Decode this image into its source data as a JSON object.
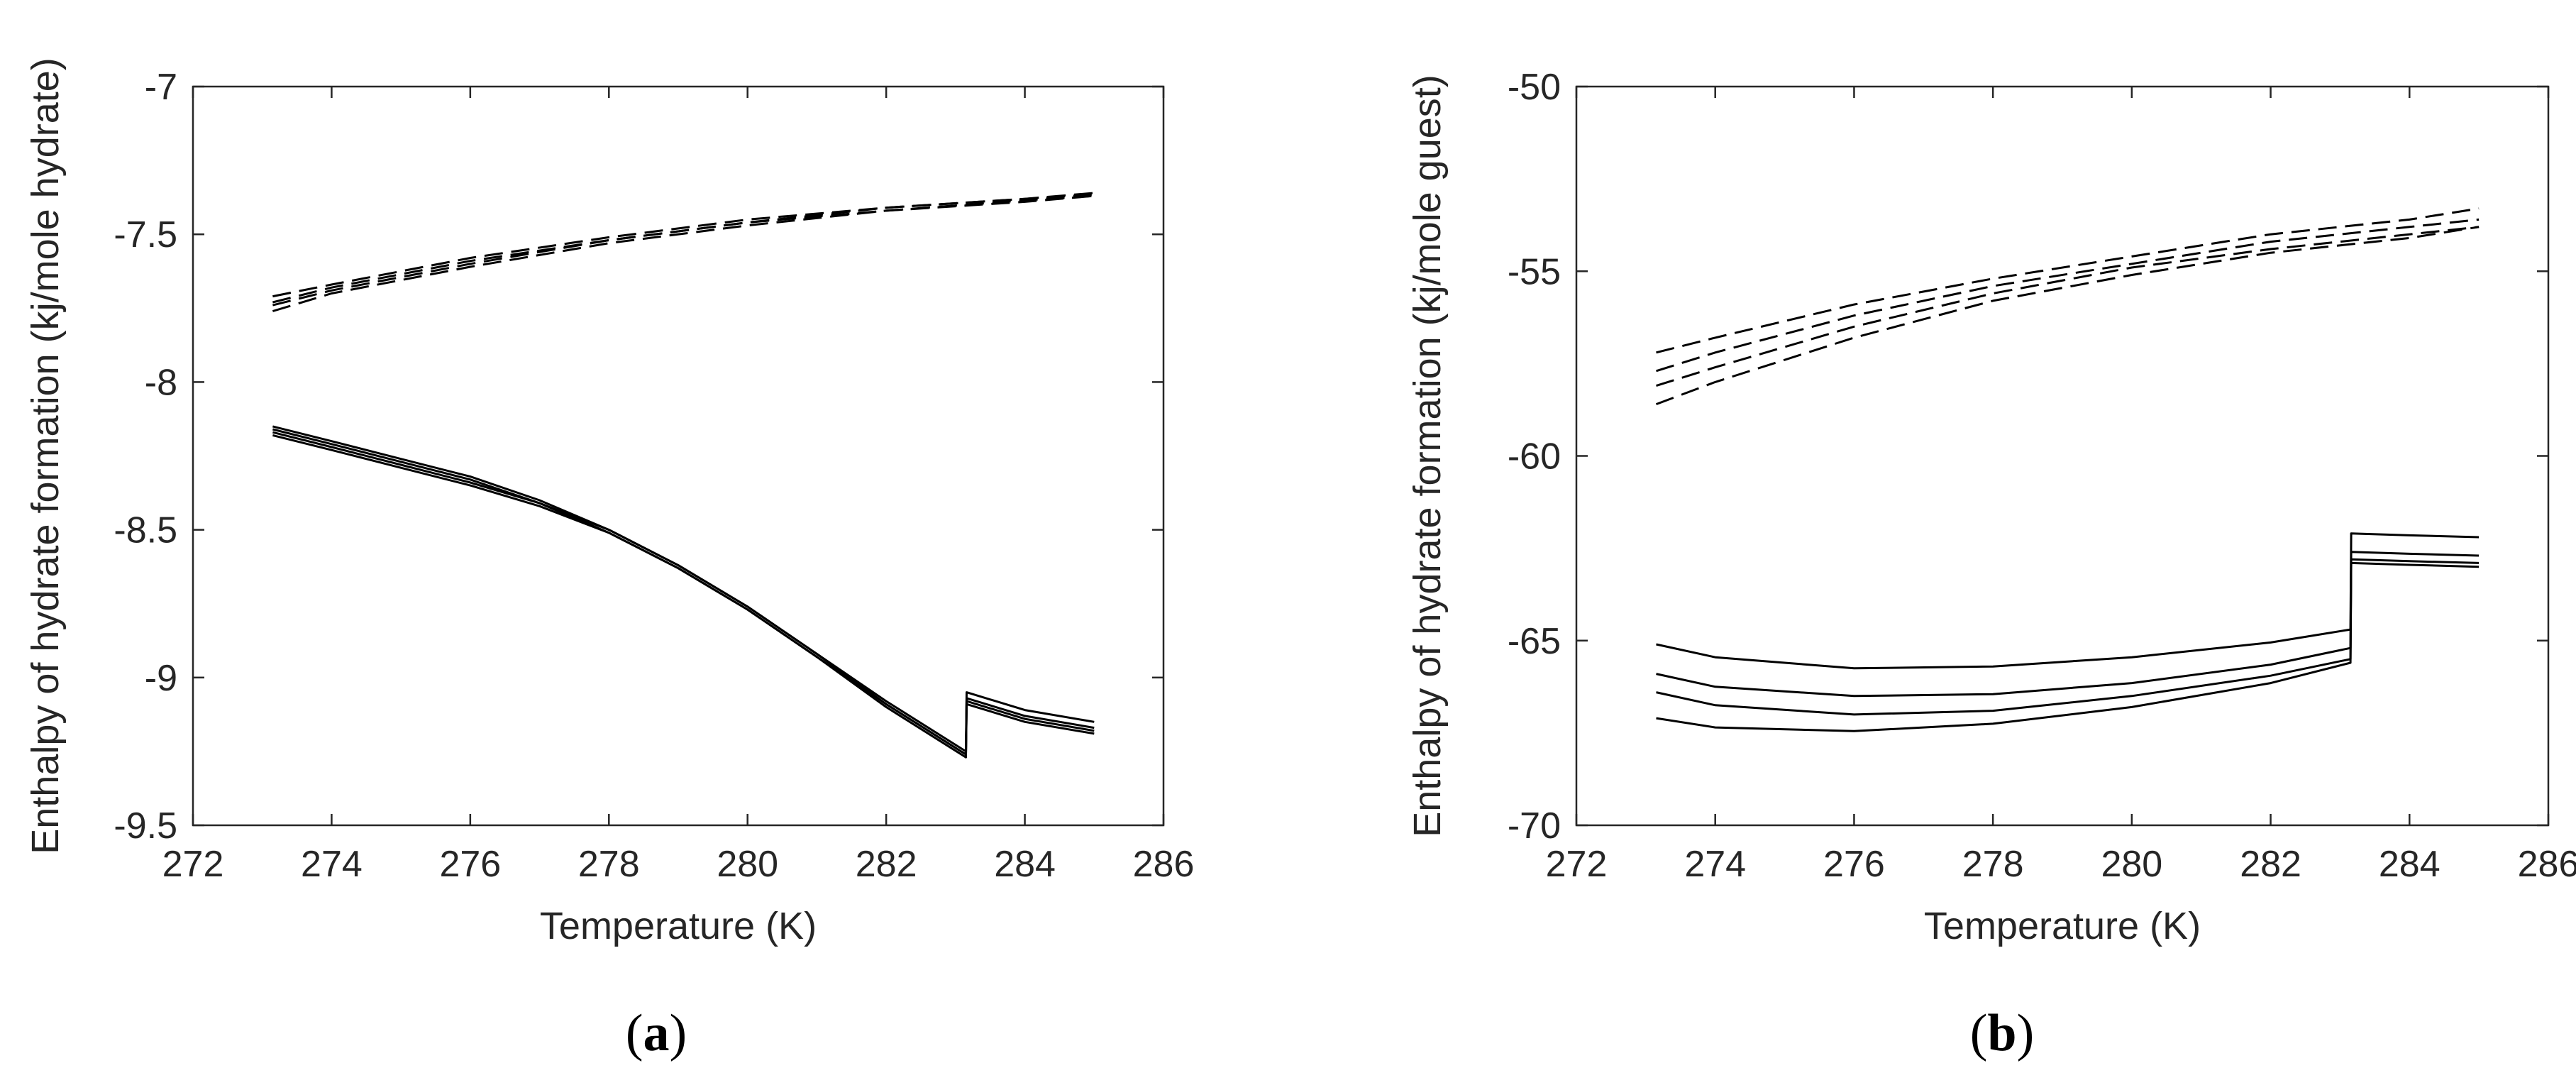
{
  "chart_data": [
    {
      "type": "line",
      "panel_label_open": "(",
      "panel_label_letter": "a",
      "panel_label_close": ")",
      "xlabel": "Temperature (K)",
      "ylabel": "Enthalpy of hydrate formation (kj/mole hydrate)",
      "xlim": [
        272,
        286
      ],
      "ylim": [
        -9.5,
        -7
      ],
      "xticks": [
        272,
        274,
        276,
        278,
        280,
        282,
        284,
        286
      ],
      "yticks": [
        -7,
        -7.5,
        -8,
        -8.5,
        -9,
        -9.5
      ],
      "xtick_labels": [
        "272",
        "274",
        "276",
        "278",
        "280",
        "282",
        "284",
        "286"
      ],
      "ytick_labels": [
        "-7",
        "-7.5",
        "-8",
        "-8.5",
        "-9",
        "-9.5"
      ],
      "series": [
        {
          "name": "dashed 1",
          "style": "dashed",
          "x": [
            273.15,
            274,
            276,
            278,
            280,
            282,
            284,
            285
          ],
          "y": [
            -7.71,
            -7.67,
            -7.58,
            -7.51,
            -7.45,
            -7.41,
            -7.38,
            -7.36
          ]
        },
        {
          "name": "dashed 2",
          "style": "dashed",
          "x": [
            273.15,
            274,
            276,
            278,
            280,
            282,
            284,
            285
          ],
          "y": [
            -7.73,
            -7.68,
            -7.59,
            -7.52,
            -7.46,
            -7.41,
            -7.38,
            -7.365
          ]
        },
        {
          "name": "dashed 3",
          "style": "dashed",
          "x": [
            273.15,
            274,
            276,
            278,
            280,
            282,
            284,
            285
          ],
          "y": [
            -7.74,
            -7.69,
            -7.6,
            -7.52,
            -7.46,
            -7.42,
            -7.385,
            -7.37
          ]
        },
        {
          "name": "dashed 4",
          "style": "dashed",
          "x": [
            273.15,
            274,
            276,
            278,
            280,
            282,
            284,
            285
          ],
          "y": [
            -7.76,
            -7.7,
            -7.61,
            -7.53,
            -7.47,
            -7.42,
            -7.39,
            -7.37
          ]
        },
        {
          "name": "solid 1",
          "style": "solid",
          "x": [
            273.15,
            274,
            275,
            276,
            277,
            278,
            279,
            280,
            281,
            282,
            283.15,
            283.16,
            284,
            285
          ],
          "y": [
            -8.15,
            -8.2,
            -8.26,
            -8.32,
            -8.4,
            -8.5,
            -8.62,
            -8.76,
            -8.92,
            -9.08,
            -9.25,
            -9.05,
            -9.11,
            -9.15
          ]
        },
        {
          "name": "solid 2",
          "style": "solid",
          "x": [
            273.15,
            274,
            275,
            276,
            277,
            278,
            279,
            280,
            281,
            282,
            283.15,
            283.16,
            284,
            285
          ],
          "y": [
            -8.16,
            -8.21,
            -8.27,
            -8.33,
            -8.41,
            -8.5,
            -8.62,
            -8.76,
            -8.92,
            -9.09,
            -9.26,
            -9.07,
            -9.13,
            -9.17
          ]
        },
        {
          "name": "solid 3",
          "style": "solid",
          "x": [
            273.15,
            274,
            275,
            276,
            277,
            278,
            279,
            280,
            281,
            282,
            283.15,
            283.16,
            284,
            285
          ],
          "y": [
            -8.17,
            -8.22,
            -8.28,
            -8.34,
            -8.41,
            -8.51,
            -8.63,
            -8.77,
            -8.93,
            -9.09,
            -9.26,
            -9.08,
            -9.14,
            -9.18
          ]
        },
        {
          "name": "solid 4",
          "style": "solid",
          "x": [
            273.15,
            274,
            275,
            276,
            277,
            278,
            279,
            280,
            281,
            282,
            283.15,
            283.16,
            284,
            285
          ],
          "y": [
            -8.18,
            -8.23,
            -8.29,
            -8.35,
            -8.42,
            -8.51,
            -8.63,
            -8.77,
            -8.93,
            -9.1,
            -9.27,
            -9.09,
            -9.15,
            -9.19
          ]
        }
      ]
    },
    {
      "type": "line",
      "panel_label_open": "(",
      "panel_label_letter": "b",
      "panel_label_close": ")",
      "xlabel": "Temperature (K)",
      "ylabel": "Enthalpy of hydrate formation (kj/mole guest)",
      "xlim": [
        272,
        286
      ],
      "ylim": [
        -70,
        -50
      ],
      "xticks": [
        272,
        274,
        276,
        278,
        280,
        282,
        284,
        286
      ],
      "yticks": [
        -50,
        -55,
        -60,
        -65,
        -70
      ],
      "xtick_labels": [
        "272",
        "274",
        "276",
        "278",
        "280",
        "282",
        "284",
        "286"
      ],
      "ytick_labels": [
        "-50",
        "-55",
        "-60",
        "-65",
        "-70"
      ],
      "series": [
        {
          "name": "dashed 1",
          "style": "dashed",
          "x": [
            273.15,
            274,
            276,
            278,
            280,
            282,
            284,
            285
          ],
          "y": [
            -57.2,
            -56.8,
            -55.9,
            -55.2,
            -54.6,
            -54.0,
            -53.6,
            -53.3
          ]
        },
        {
          "name": "dashed 2",
          "style": "dashed",
          "x": [
            273.15,
            274,
            276,
            278,
            280,
            282,
            284,
            285
          ],
          "y": [
            -57.7,
            -57.2,
            -56.2,
            -55.4,
            -54.8,
            -54.2,
            -53.8,
            -53.6
          ]
        },
        {
          "name": "dashed 3",
          "style": "dashed",
          "x": [
            273.15,
            274,
            276,
            278,
            280,
            282,
            284,
            285
          ],
          "y": [
            -58.1,
            -57.6,
            -56.5,
            -55.6,
            -54.9,
            -54.4,
            -54.0,
            -53.8
          ]
        },
        {
          "name": "dashed 4",
          "style": "dashed",
          "x": [
            273.15,
            274,
            276,
            278,
            280,
            282,
            284,
            285
          ],
          "y": [
            -58.6,
            -58.0,
            -56.8,
            -55.8,
            -55.1,
            -54.5,
            -54.1,
            -53.8
          ]
        },
        {
          "name": "solid 1",
          "style": "solid",
          "x": [
            273.15,
            274,
            276,
            278,
            280,
            282,
            283.15,
            283.16,
            284,
            285
          ],
          "y": [
            -65.1,
            -65.45,
            -65.75,
            -65.7,
            -65.45,
            -65.05,
            -64.7,
            -62.1,
            -62.15,
            -62.2
          ]
        },
        {
          "name": "solid 2",
          "style": "solid",
          "x": [
            273.15,
            274,
            276,
            278,
            280,
            282,
            283.15,
            283.16,
            284,
            285
          ],
          "y": [
            -65.9,
            -66.25,
            -66.5,
            -66.45,
            -66.15,
            -65.65,
            -65.2,
            -62.6,
            -62.65,
            -62.7
          ]
        },
        {
          "name": "solid 3",
          "style": "solid",
          "x": [
            273.15,
            274,
            276,
            278,
            280,
            282,
            283.15,
            283.16,
            284,
            285
          ],
          "y": [
            -66.4,
            -66.75,
            -67.0,
            -66.9,
            -66.5,
            -65.95,
            -65.5,
            -62.8,
            -62.85,
            -62.9
          ]
        },
        {
          "name": "solid 4",
          "style": "solid",
          "x": [
            273.15,
            274,
            276,
            278,
            280,
            282,
            283.15,
            283.16,
            284,
            285
          ],
          "y": [
            -67.1,
            -67.35,
            -67.45,
            -67.25,
            -66.8,
            -66.15,
            -65.6,
            -62.9,
            -62.95,
            -63.0
          ]
        }
      ]
    }
  ]
}
